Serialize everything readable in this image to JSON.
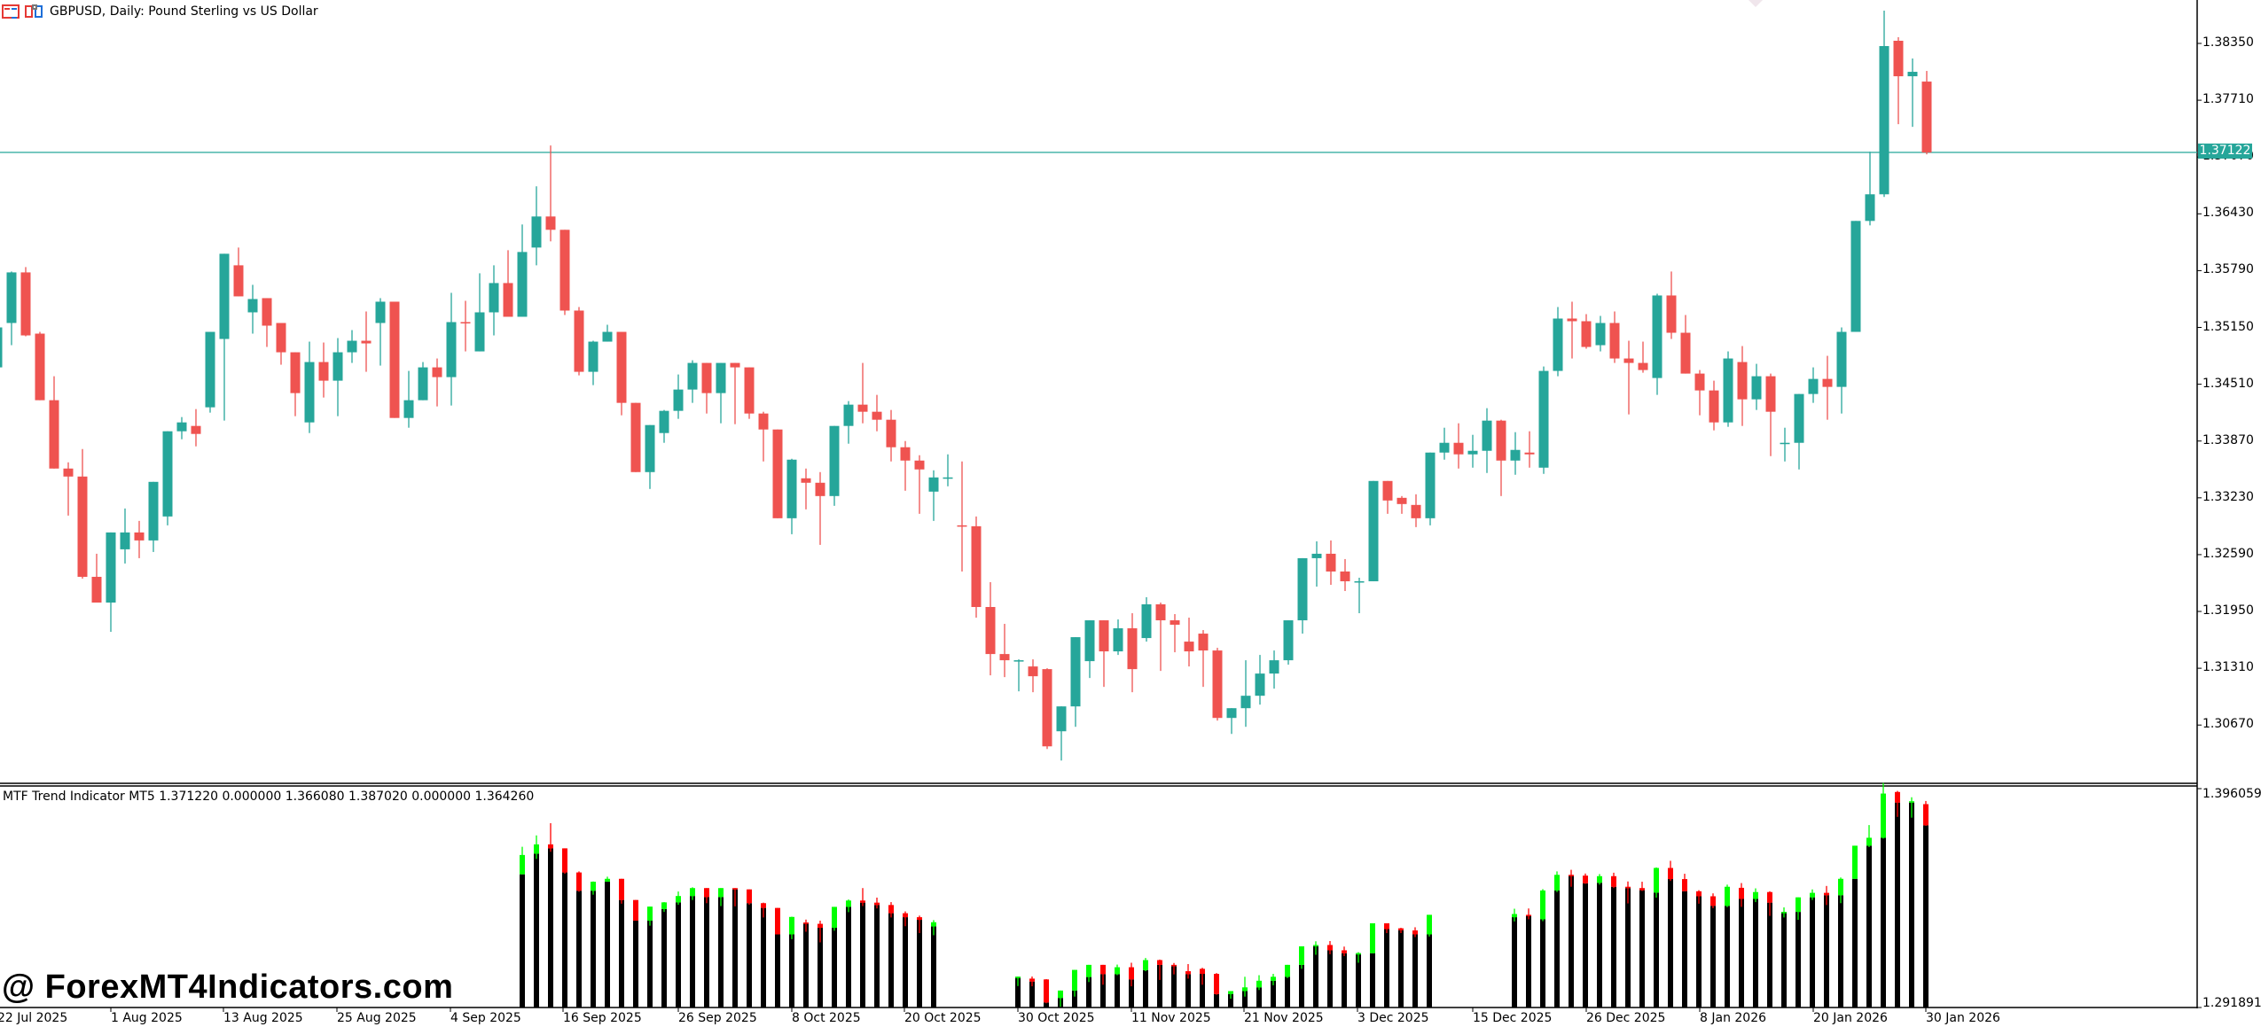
{
  "window": {
    "symbol": "GBPUSD",
    "timeframe": "Daily",
    "description": "Pound Sterling vs US Dollar",
    "title": "GBPUSD, Daily:  Pound Sterling vs US Dollar",
    "icons": [
      "chart-window-icon",
      "template-icon"
    ]
  },
  "colors": {
    "bull": "#26A69A",
    "bear": "#EF5350",
    "ind_bull": "#00FF00",
    "ind_bear": "#FF0000",
    "ind_base": "#000000",
    "bid_line": "#26A69A",
    "axis": "#000000",
    "background": "#FFFFFF"
  },
  "price_axis": {
    "ticks": [
      "1.38350",
      "1.37710",
      "1.37070",
      "1.36430",
      "1.35790",
      "1.35150",
      "1.34510",
      "1.33870",
      "1.33230",
      "1.32590",
      "1.31950",
      "1.31310",
      "1.30670"
    ],
    "bid": "1.37122"
  },
  "indicator": {
    "label": "MTF Trend Indicator MT5 1.371220 0.000000 1.366080 1.387020 0.000000 1.364260",
    "name": "MTF Trend Indicator MT5",
    "values": [
      "1.371220",
      "0.000000",
      "1.366080",
      "1.387020",
      "0.000000",
      "1.364260"
    ],
    "axis_max": "1.396059",
    "axis_min": "1.291891"
  },
  "time_axis": {
    "labels": [
      "22 Jul 2025",
      "1 Aug 2025",
      "13 Aug 2025",
      "25 Aug 2025",
      "4 Sep 2025",
      "16 Sep 2025",
      "26 Sep 2025",
      "8 Oct 2025",
      "20 Oct 2025",
      "30 Oct 2025",
      "11 Nov 2025",
      "21 Nov 2025",
      "3 Dec 2025",
      "15 Dec 2025",
      "26 Dec 2025",
      "8 Jan 2026",
      "20 Jan 2026",
      "30 Jan 2026"
    ]
  },
  "watermark": "@ ForexMT4Indicators.com",
  "chart_data": [
    {
      "type": "candlestick",
      "title": "GBPUSD, Daily:  Pound Sterling vs US Dollar",
      "xlabel": "",
      "ylabel": "",
      "ylim": [
        1.303,
        1.388
      ],
      "grid": false,
      "x_start": "2025-07-22",
      "x_end": "2026-01-30",
      "fields": [
        "open",
        "high",
        "low",
        "close"
      ],
      "candles": [
        [
          1.347,
          1.351,
          1.346,
          1.3515
        ],
        [
          1.352,
          1.3578,
          1.3495,
          1.3577
        ],
        [
          1.3577,
          1.3583,
          1.3505,
          1.3506
        ],
        [
          1.3508,
          1.351,
          1.3435,
          1.3433
        ],
        [
          1.3433,
          1.346,
          1.3356,
          1.3356
        ],
        [
          1.3356,
          1.3363,
          1.3303,
          1.3347
        ],
        [
          1.3347,
          1.3378,
          1.3232,
          1.3234
        ],
        [
          1.3234,
          1.326,
          1.3206,
          1.3205
        ],
        [
          1.3205,
          1.3272,
          1.3172,
          1.3284
        ],
        [
          1.3265,
          1.3311,
          1.3249,
          1.3284
        ],
        [
          1.3284,
          1.3297,
          1.3255,
          1.3275
        ],
        [
          1.3275,
          1.3327,
          1.3262,
          1.3341
        ],
        [
          1.3302,
          1.335,
          1.3292,
          1.3398
        ],
        [
          1.3398,
          1.3414,
          1.3389,
          1.3408
        ],
        [
          1.3404,
          1.3423,
          1.3381,
          1.3395
        ],
        [
          1.3425,
          1.349,
          1.3419,
          1.351
        ],
        [
          1.3502,
          1.3593,
          1.341,
          1.3598
        ],
        [
          1.3585,
          1.3605,
          1.356,
          1.355
        ],
        [
          1.3532,
          1.3563,
          1.3508,
          1.3547
        ],
        [
          1.3548,
          1.3547,
          1.3493,
          1.3517
        ],
        [
          1.352,
          1.3487,
          1.3473,
          1.3487
        ],
        [
          1.3487,
          1.3476,
          1.3415,
          1.3441
        ],
        [
          1.3408,
          1.3499,
          1.3396,
          1.3476
        ],
        [
          1.3476,
          1.3498,
          1.3436,
          1.3455
        ],
        [
          1.3455,
          1.3503,
          1.3415,
          1.3487
        ],
        [
          1.3487,
          1.3512,
          1.3475,
          1.35
        ],
        [
          1.35,
          1.3533,
          1.3465,
          1.3497
        ],
        [
          1.352,
          1.3548,
          1.3472,
          1.3544
        ],
        [
          1.3544,
          1.3542,
          1.3415,
          1.3413
        ],
        [
          1.3413,
          1.3466,
          1.3402,
          1.3433
        ],
        [
          1.3433,
          1.3476,
          1.344,
          1.347
        ],
        [
          1.347,
          1.348,
          1.3426,
          1.3459
        ],
        [
          1.3459,
          1.3554,
          1.3427,
          1.3521
        ],
        [
          1.3521,
          1.3545,
          1.3488,
          1.352
        ],
        [
          1.3488,
          1.3576,
          1.349,
          1.3532
        ],
        [
          1.3532,
          1.3585,
          1.3506,
          1.3565
        ],
        [
          1.3565,
          1.3602,
          1.3527,
          1.3527
        ],
        [
          1.3527,
          1.3631,
          1.3527,
          1.36
        ],
        [
          1.3605,
          1.3674,
          1.3585,
          1.364
        ],
        [
          1.364,
          1.372,
          1.3612,
          1.3625
        ],
        [
          1.3625,
          1.3609,
          1.3529,
          1.3534
        ],
        [
          1.3534,
          1.3538,
          1.3461,
          1.3465
        ],
        [
          1.3465,
          1.35,
          1.345,
          1.3499
        ],
        [
          1.3499,
          1.3518,
          1.3499,
          1.351
        ],
        [
          1.351,
          1.3498,
          1.3416,
          1.343
        ],
        [
          1.343,
          1.3428,
          1.3352,
          1.3352
        ],
        [
          1.3352,
          1.3399,
          1.3333,
          1.3405
        ],
        [
          1.3396,
          1.3422,
          1.3385,
          1.3421
        ],
        [
          1.3421,
          1.3462,
          1.3412,
          1.3445
        ],
        [
          1.3445,
          1.3478,
          1.343,
          1.3475
        ],
        [
          1.3475,
          1.3462,
          1.3418,
          1.3441
        ],
        [
          1.3441,
          1.3475,
          1.3407,
          1.3475
        ],
        [
          1.3475,
          1.3471,
          1.3406,
          1.347
        ],
        [
          1.347,
          1.347,
          1.3412,
          1.3418
        ],
        [
          1.3418,
          1.342,
          1.3364,
          1.34
        ],
        [
          1.34,
          1.3386,
          1.33,
          1.33
        ],
        [
          1.33,
          1.3367,
          1.3282,
          1.3366
        ],
        [
          1.3345,
          1.3356,
          1.331,
          1.334
        ],
        [
          1.334,
          1.3352,
          1.327,
          1.3325
        ],
        [
          1.3325,
          1.3359,
          1.3314,
          1.3404
        ],
        [
          1.3404,
          1.3432,
          1.3384,
          1.3428
        ],
        [
          1.3428,
          1.3475,
          1.3407,
          1.342
        ],
        [
          1.342,
          1.3439,
          1.3398,
          1.3411
        ],
        [
          1.3411,
          1.3422,
          1.3364,
          1.338
        ],
        [
          1.338,
          1.3387,
          1.3331,
          1.3365
        ],
        [
          1.3365,
          1.3371,
          1.3305,
          1.3355
        ],
        [
          1.333,
          1.3354,
          1.3297,
          1.3346
        ],
        [
          1.3346,
          1.3372,
          1.3336,
          1.3346
        ],
        [
          1.3292,
          1.3364,
          1.324,
          1.3291
        ],
        [
          1.3291,
          1.3302,
          1.3188,
          1.32
        ],
        [
          1.32,
          1.3228,
          1.3123,
          1.3147
        ],
        [
          1.3147,
          1.3181,
          1.3121,
          1.314
        ],
        [
          1.314,
          1.3141,
          1.3105,
          1.314
        ],
        [
          1.3133,
          1.3141,
          1.3104,
          1.3122
        ],
        [
          1.313,
          1.3131,
          1.304,
          1.3043
        ],
        [
          1.306,
          1.3071,
          1.3027,
          1.3088
        ],
        [
          1.3088,
          1.3143,
          1.3065,
          1.3166
        ],
        [
          1.3139,
          1.3183,
          1.312,
          1.3185
        ],
        [
          1.3185,
          1.3176,
          1.311,
          1.315
        ],
        [
          1.315,
          1.3186,
          1.3146,
          1.3176
        ],
        [
          1.3176,
          1.3193,
          1.3104,
          1.313
        ],
        [
          1.3165,
          1.3211,
          1.3161,
          1.3203
        ],
        [
          1.3203,
          1.3205,
          1.3128,
          1.3185
        ],
        [
          1.3185,
          1.3192,
          1.3149,
          1.318
        ],
        [
          1.3161,
          1.3188,
          1.3133,
          1.315
        ],
        [
          1.317,
          1.3174,
          1.311,
          1.3151
        ],
        [
          1.3151,
          1.3154,
          1.3072,
          1.3075
        ],
        [
          1.3075,
          1.3081,
          1.3057,
          1.3086
        ],
        [
          1.3086,
          1.314,
          1.3065,
          1.31
        ],
        [
          1.31,
          1.3146,
          1.309,
          1.3125
        ],
        [
          1.3125,
          1.3151,
          1.3108,
          1.314
        ],
        [
          1.314,
          1.318,
          1.3135,
          1.3185
        ],
        [
          1.3185,
          1.3218,
          1.317,
          1.3255
        ],
        [
          1.3255,
          1.3274,
          1.3223,
          1.326
        ],
        [
          1.326,
          1.3275,
          1.3225,
          1.324
        ],
        [
          1.324,
          1.3254,
          1.3218,
          1.3229
        ],
        [
          1.3229,
          1.3233,
          1.3193,
          1.3229
        ],
        [
          1.3229,
          1.3314,
          1.323,
          1.3342
        ],
        [
          1.3342,
          1.3328,
          1.3305,
          1.332
        ],
        [
          1.3323,
          1.3325,
          1.3305,
          1.3316
        ],
        [
          1.3315,
          1.3327,
          1.329,
          1.33
        ],
        [
          1.33,
          1.3365,
          1.3292,
          1.3374
        ],
        [
          1.3374,
          1.3402,
          1.3366,
          1.3385
        ],
        [
          1.3385,
          1.3407,
          1.3356,
          1.3372
        ],
        [
          1.3372,
          1.3394,
          1.3357,
          1.3376
        ],
        [
          1.3376,
          1.3424,
          1.3351,
          1.341
        ],
        [
          1.341,
          1.3411,
          1.3325,
          1.3365
        ],
        [
          1.3365,
          1.3397,
          1.3349,
          1.3377
        ],
        [
          1.3374,
          1.3398,
          1.3357,
          1.3372
        ],
        [
          1.3357,
          1.3471,
          1.335,
          1.3466
        ],
        [
          1.3466,
          1.3538,
          1.346,
          1.3525
        ],
        [
          1.3525,
          1.3544,
          1.348,
          1.3522
        ],
        [
          1.3522,
          1.353,
          1.3491,
          1.3493
        ],
        [
          1.3495,
          1.3528,
          1.3488,
          1.352
        ],
        [
          1.352,
          1.3533,
          1.3475,
          1.348
        ],
        [
          1.348,
          1.35,
          1.3417,
          1.3475
        ],
        [
          1.3475,
          1.3499,
          1.3464,
          1.3467
        ],
        [
          1.3458,
          1.3553,
          1.3439,
          1.3551
        ],
        [
          1.3551,
          1.3578,
          1.3502,
          1.3509
        ],
        [
          1.3509,
          1.3529,
          1.3463,
          1.3463
        ],
        [
          1.3463,
          1.3467,
          1.3416,
          1.3444
        ],
        [
          1.3444,
          1.3455,
          1.3399,
          1.3408
        ],
        [
          1.3408,
          1.3488,
          1.3403,
          1.348
        ],
        [
          1.3476,
          1.3494,
          1.3404,
          1.3434
        ],
        [
          1.3434,
          1.3474,
          1.3422,
          1.346
        ],
        [
          1.346,
          1.3463,
          1.337,
          1.342
        ],
        [
          1.3385,
          1.3402,
          1.3364,
          1.3385
        ],
        [
          1.3385,
          1.343,
          1.3355,
          1.344
        ],
        [
          1.344,
          1.347,
          1.343,
          1.3457
        ],
        [
          1.3457,
          1.3483,
          1.3411,
          1.3448
        ],
        [
          1.3448,
          1.3515,
          1.3418,
          1.351
        ],
        [
          1.351,
          1.3575,
          1.351,
          1.3635
        ],
        [
          1.3635,
          1.3713,
          1.363,
          1.3665
        ],
        [
          1.3665,
          1.3872,
          1.3662,
          1.3832
        ],
        [
          1.3838,
          1.3842,
          1.3744,
          1.3798
        ],
        [
          1.3798,
          1.3818,
          1.3741,
          1.3803
        ],
        [
          1.3792,
          1.3804,
          1.371,
          1.3712
        ]
      ]
    },
    {
      "type": "bar",
      "title": "MTF Trend Indicator MT5",
      "ylim": [
        1.291891,
        1.396059
      ],
      "note": "Black base bar to min(open,close); green/red candle body with wick on top; gaps where indicator has no value",
      "segments": [
        {
          "from_index": 22,
          "to_index": 40
        },
        {
          "from_index": 44,
          "to_index": 62
        },
        {
          "from_index": 66,
          "to_index": 80
        }
      ]
    }
  ]
}
